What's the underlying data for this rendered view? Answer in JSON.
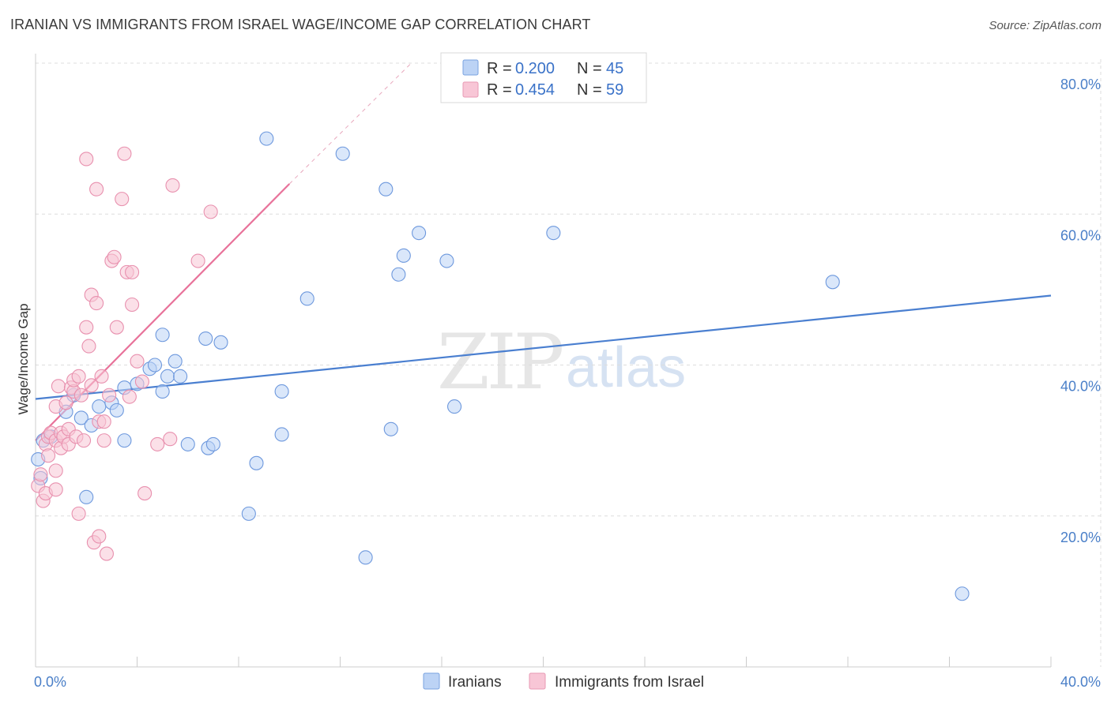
{
  "title": "IRANIAN VS IMMIGRANTS FROM ISRAEL WAGE/INCOME GAP CORRELATION CHART",
  "source": "Source: ZipAtlas.com",
  "watermark": {
    "zip": "ZIP",
    "atlas": "atlas"
  },
  "colors": {
    "blue": "#4a7fd0",
    "blue_fill": "#bcd3f5",
    "pink": "#e8729a",
    "pink_fill": "#f8c6d6",
    "grid": "#dddddd",
    "tick_label": "#4a7fc8"
  },
  "legend": {
    "rows": [
      {
        "r_label": "R =",
        "r_value": "0.200",
        "n_label": "N =",
        "n_value": "45"
      },
      {
        "r_label": "R =",
        "r_value": "0.454",
        "n_label": "N =",
        "n_value": "59"
      }
    ]
  },
  "bottom_legend": [
    "Iranians",
    "Immigrants from Israel"
  ],
  "chart_data": {
    "type": "scatter",
    "title": "IRANIAN VS IMMIGRANTS FROM ISRAEL WAGE/INCOME GAP CORRELATION CHART",
    "xlabel": "",
    "ylabel": "Wage/Income Gap",
    "xlim": [
      0,
      40
    ],
    "ylim": [
      0,
      82
    ],
    "x_tick_labels": [
      "0.0%",
      "40.0%"
    ],
    "y_ticks": [
      20,
      40,
      60,
      80
    ],
    "y_tick_labels": [
      "20.0%",
      "40.0%",
      "60.0%",
      "80.0%"
    ],
    "grid": true,
    "series": [
      {
        "name": "Iranians",
        "color": "#4a7fd0",
        "r": 0.2,
        "n": 45,
        "trend": {
          "x": [
            0,
            40
          ],
          "y": [
            35.5,
            49.2
          ]
        },
        "points": [
          [
            0.1,
            27.5
          ],
          [
            0.2,
            25.0
          ],
          [
            0.3,
            30.0
          ],
          [
            0.6,
            30.5
          ],
          [
            1.2,
            33.8
          ],
          [
            1.5,
            36.0
          ],
          [
            1.8,
            33.0
          ],
          [
            2.0,
            22.5
          ],
          [
            2.2,
            32.0
          ],
          [
            2.5,
            34.5
          ],
          [
            3.0,
            35.0
          ],
          [
            3.2,
            34.0
          ],
          [
            3.5,
            37.0
          ],
          [
            3.5,
            30.0
          ],
          [
            4.0,
            37.5
          ],
          [
            4.5,
            39.5
          ],
          [
            4.7,
            40.0
          ],
          [
            5.0,
            36.5
          ],
          [
            5.0,
            44.0
          ],
          [
            5.2,
            38.5
          ],
          [
            5.5,
            40.5
          ],
          [
            5.7,
            38.5
          ],
          [
            6.0,
            29.5
          ],
          [
            6.7,
            43.5
          ],
          [
            6.8,
            29.0
          ],
          [
            7.0,
            29.5
          ],
          [
            7.3,
            43.0
          ],
          [
            8.4,
            20.3
          ],
          [
            8.7,
            27.0
          ],
          [
            9.1,
            70.0
          ],
          [
            9.7,
            36.5
          ],
          [
            9.7,
            30.8
          ],
          [
            10.7,
            48.8
          ],
          [
            12.1,
            68.0
          ],
          [
            13.0,
            14.5
          ],
          [
            13.8,
            63.3
          ],
          [
            14.0,
            31.5
          ],
          [
            14.3,
            52.0
          ],
          [
            14.5,
            54.5
          ],
          [
            15.1,
            57.5
          ],
          [
            16.2,
            53.8
          ],
          [
            16.5,
            34.5
          ],
          [
            20.4,
            57.5
          ],
          [
            31.4,
            51.0
          ],
          [
            36.5,
            9.7
          ]
        ]
      },
      {
        "name": "Immigrants from Israel",
        "color": "#e8729a",
        "r": 0.454,
        "n": 59,
        "trend": {
          "x": [
            0,
            10
          ],
          "y": [
            30.0,
            64.0
          ]
        },
        "trend_extension": {
          "x": [
            10,
            14.8
          ],
          "y": [
            64.0,
            80.0
          ]
        },
        "points": [
          [
            0.1,
            24.0
          ],
          [
            0.2,
            25.5
          ],
          [
            0.3,
            22.0
          ],
          [
            0.4,
            23.0
          ],
          [
            0.4,
            29.5
          ],
          [
            0.5,
            28.0
          ],
          [
            0.5,
            30.5
          ],
          [
            0.6,
            31.0
          ],
          [
            0.8,
            23.5
          ],
          [
            0.8,
            26.0
          ],
          [
            0.8,
            30.0
          ],
          [
            0.8,
            34.5
          ],
          [
            0.9,
            37.2
          ],
          [
            1.0,
            29.0
          ],
          [
            1.0,
            31.0
          ],
          [
            1.1,
            30.5
          ],
          [
            1.2,
            35.0
          ],
          [
            1.3,
            29.5
          ],
          [
            1.3,
            31.5
          ],
          [
            1.4,
            37.0
          ],
          [
            1.5,
            36.5
          ],
          [
            1.5,
            38.0
          ],
          [
            1.6,
            30.5
          ],
          [
            1.7,
            20.3
          ],
          [
            1.7,
            38.5
          ],
          [
            1.8,
            36.0
          ],
          [
            1.9,
            30.0
          ],
          [
            2.0,
            45.0
          ],
          [
            2.0,
            67.3
          ],
          [
            2.1,
            42.5
          ],
          [
            2.2,
            37.3
          ],
          [
            2.2,
            49.3
          ],
          [
            2.3,
            16.5
          ],
          [
            2.4,
            48.2
          ],
          [
            2.4,
            63.3
          ],
          [
            2.5,
            32.5
          ],
          [
            2.5,
            17.3
          ],
          [
            2.6,
            38.5
          ],
          [
            2.7,
            30.0
          ],
          [
            2.7,
            32.5
          ],
          [
            2.8,
            15.0
          ],
          [
            2.9,
            36.0
          ],
          [
            3.0,
            53.8
          ],
          [
            3.1,
            54.3
          ],
          [
            3.2,
            45.0
          ],
          [
            3.4,
            62.0
          ],
          [
            3.5,
            68.0
          ],
          [
            3.6,
            52.3
          ],
          [
            3.7,
            35.8
          ],
          [
            3.8,
            52.3
          ],
          [
            3.8,
            48.0
          ],
          [
            4.0,
            40.5
          ],
          [
            4.2,
            37.8
          ],
          [
            4.3,
            23.0
          ],
          [
            4.8,
            29.5
          ],
          [
            5.3,
            30.2
          ],
          [
            5.4,
            63.8
          ],
          [
            6.4,
            53.8
          ],
          [
            6.9,
            60.3
          ]
        ]
      }
    ]
  }
}
